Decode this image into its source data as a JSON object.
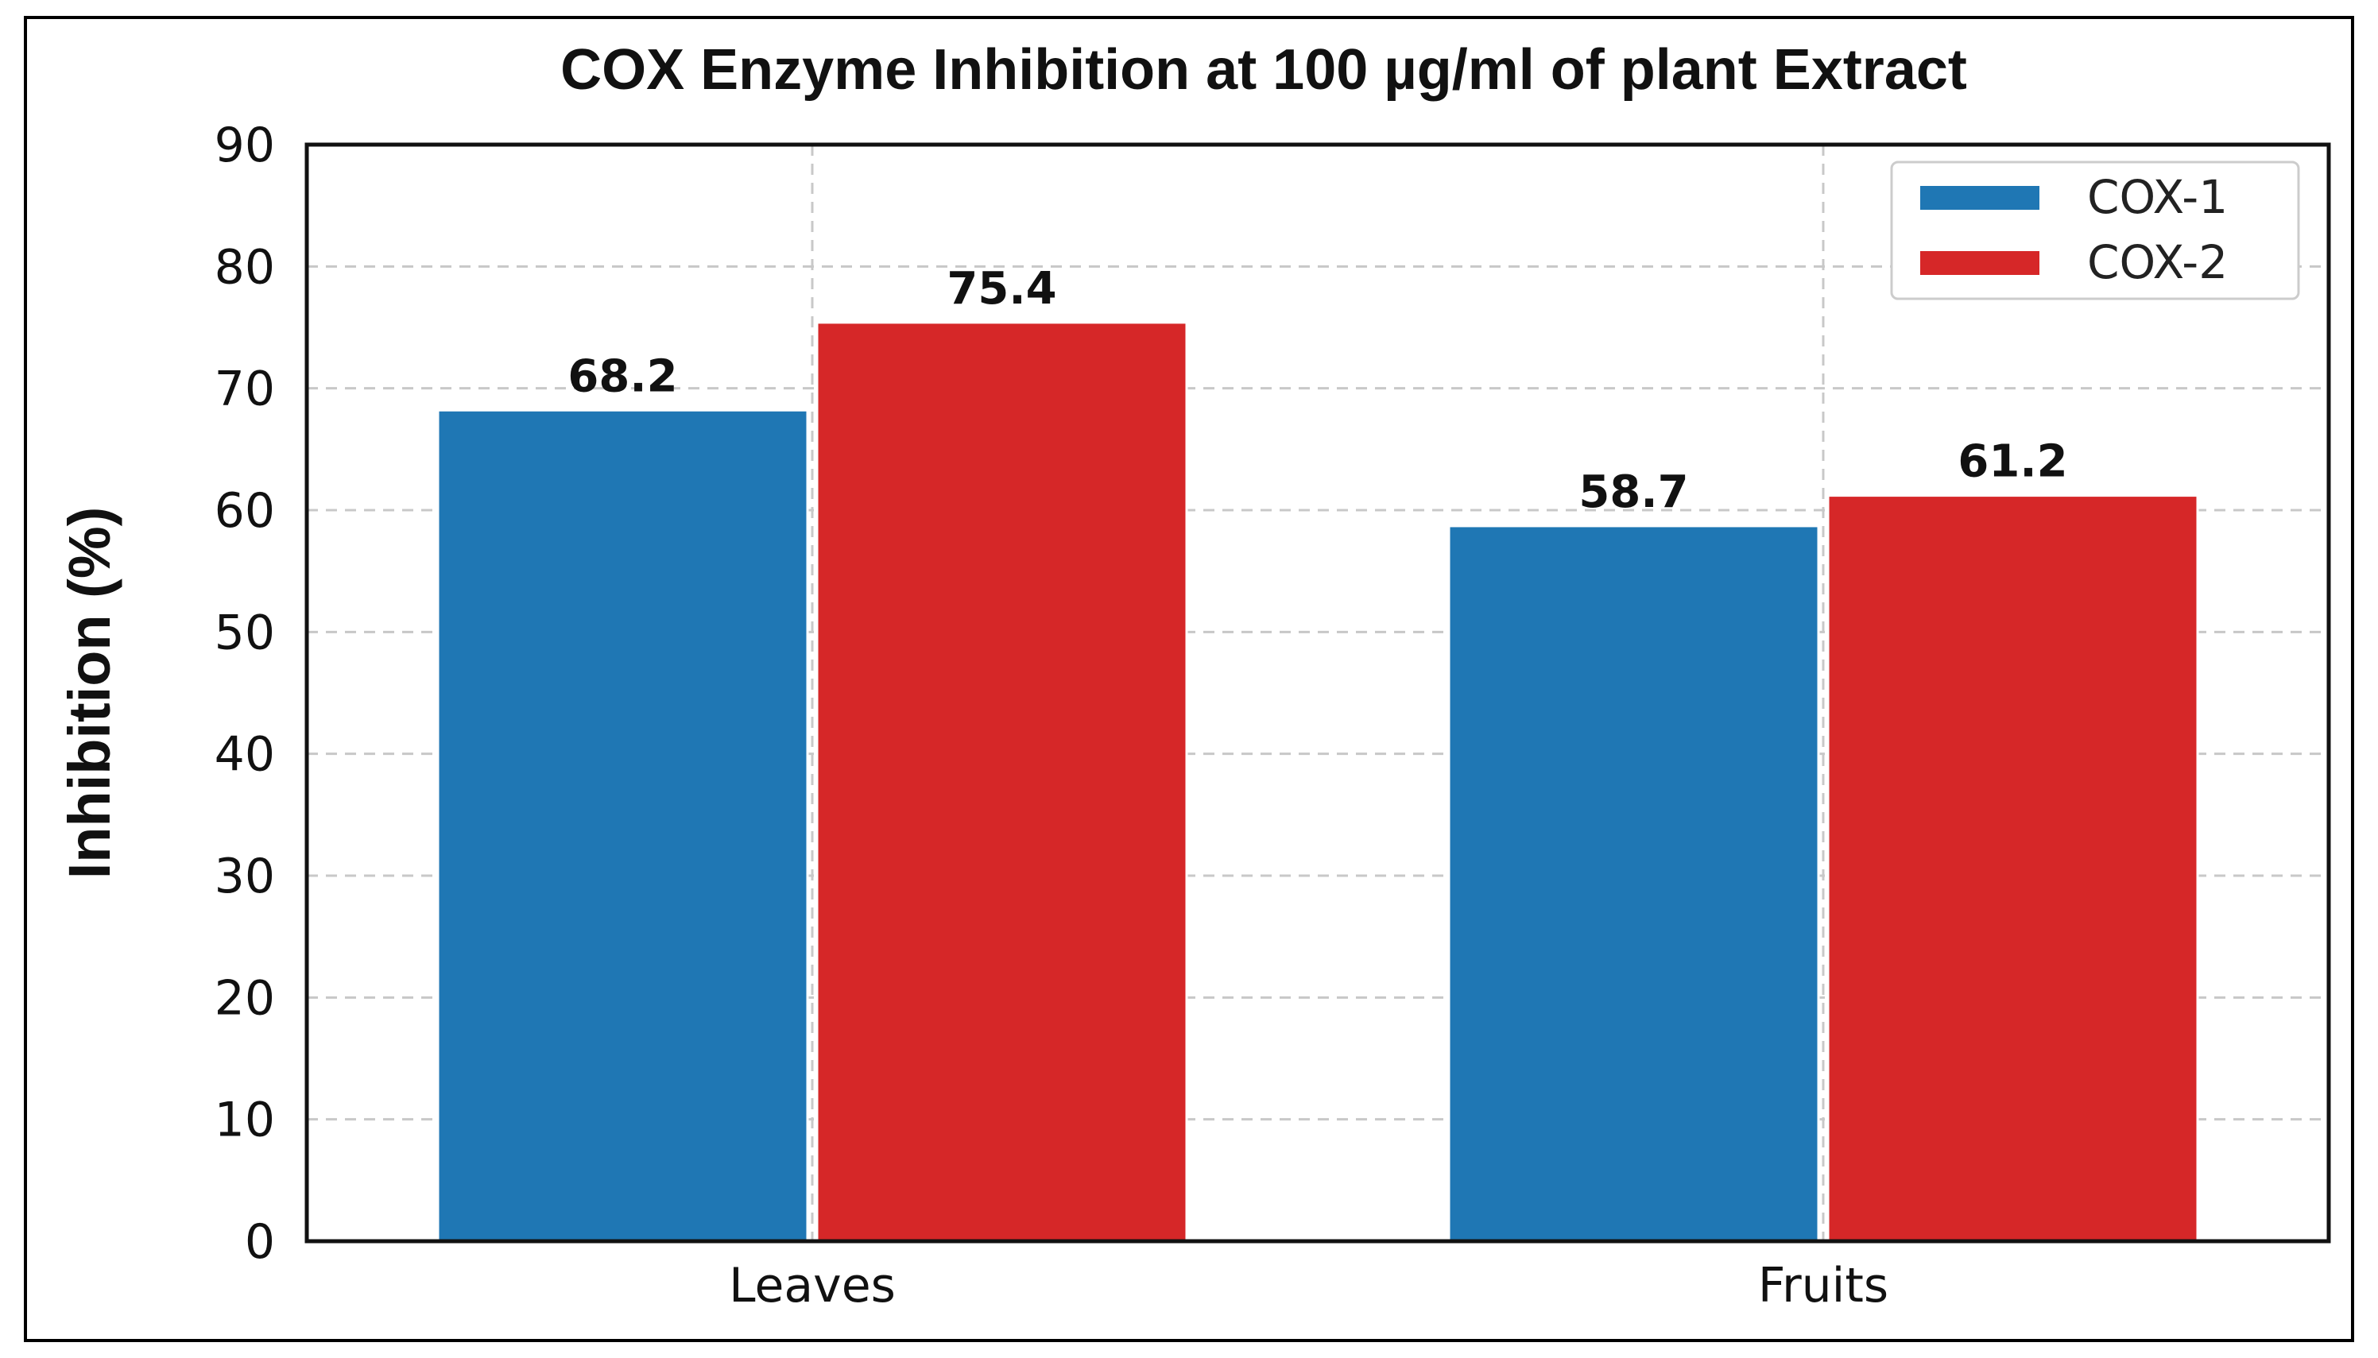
{
  "chart_data": {
    "type": "bar",
    "title": "COX Enzyme Inhibition at 100 µg/ml of  plant Extract",
    "xlabel": "",
    "ylabel": "Inhibition (%)",
    "categories": [
      "Leaves",
      "Fruits"
    ],
    "series": [
      {
        "name": "COX-1",
        "values": [
          68.2,
          58.7
        ],
        "color": "#1f77b4"
      },
      {
        "name": "COX-2",
        "values": [
          75.4,
          61.2
        ],
        "color": "#d62728"
      }
    ],
    "data_labels": [
      [
        "68.2",
        "58.7"
      ],
      [
        "75.4",
        "61.2"
      ]
    ],
    "ylim": [
      0,
      90
    ],
    "yticks": [
      0,
      10,
      20,
      30,
      40,
      50,
      60,
      70,
      80,
      90
    ],
    "grid": true,
    "legend_position": "top-right"
  }
}
